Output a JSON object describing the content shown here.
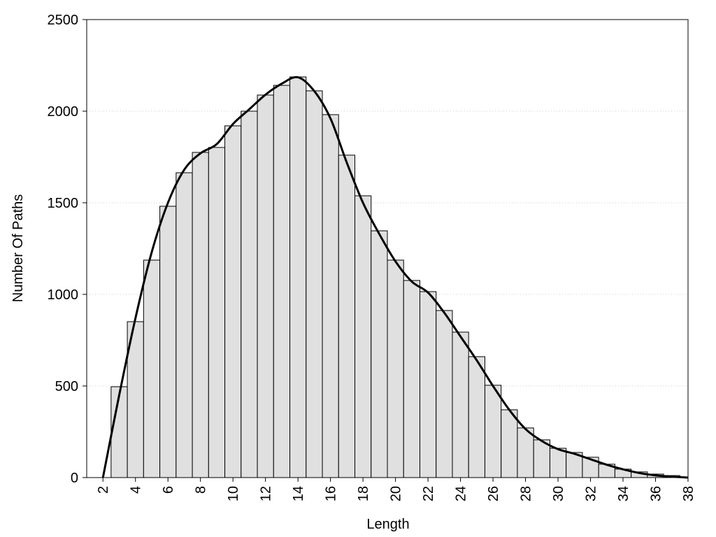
{
  "chart_data": {
    "type": "histogram",
    "x_label": "Length",
    "y_label": "Number Of Paths",
    "bins": [
      2.5,
      3.5,
      4.5,
      5.5,
      6.5,
      7.5,
      8.5,
      9.5,
      10.5,
      11.5,
      12.5,
      13.5,
      14.5,
      15.5,
      16.5,
      17.5,
      18.5,
      19.5,
      20.5,
      21.5,
      22.5,
      23.5,
      24.5,
      25.5,
      26.5,
      27.5,
      28.5,
      29.5,
      30.5,
      31.5,
      32.5,
      33.5,
      34.5,
      35.5,
      36.5,
      37.5
    ],
    "values": [
      496,
      851,
      1187,
      1481,
      1664,
      1775,
      1802,
      1920,
      2000,
      2088,
      2141,
      2187,
      2111,
      1981,
      1760,
      1538,
      1347,
      1187,
      1076,
      1015,
      912,
      794,
      660,
      504,
      370,
      271,
      206,
      160,
      137,
      111,
      73,
      46,
      31,
      19,
      11
    ],
    "color": "#e0e0e0",
    "curve": {
      "type": "line",
      "color": "#000000",
      "x": [
        2,
        3,
        4,
        5,
        6,
        7,
        8,
        9,
        10,
        11,
        12,
        13,
        14,
        15,
        16,
        17,
        18,
        19,
        20,
        21,
        22,
        23,
        24,
        25,
        26,
        27,
        28,
        29,
        30,
        31,
        32,
        33,
        34,
        35,
        36,
        37,
        38
      ],
      "values": [
        0,
        450,
        870,
        1230,
        1500,
        1680,
        1770,
        1820,
        1930,
        2010,
        2090,
        2150,
        2185,
        2110,
        1960,
        1720,
        1500,
        1330,
        1180,
        1070,
        1010,
        900,
        770,
        640,
        500,
        370,
        265,
        200,
        155,
        130,
        100,
        70,
        45,
        25,
        12,
        5,
        0
      ]
    },
    "xlim": [
      1,
      38
    ],
    "ylim": [
      0,
      2500
    ],
    "xticks": [
      2,
      4,
      6,
      8,
      10,
      12,
      14,
      16,
      18,
      20,
      22,
      24,
      26,
      28,
      30,
      32,
      34,
      36,
      38
    ],
    "yticks": [
      0,
      500,
      1000,
      1500,
      2000,
      2500
    ],
    "grid": true
  }
}
